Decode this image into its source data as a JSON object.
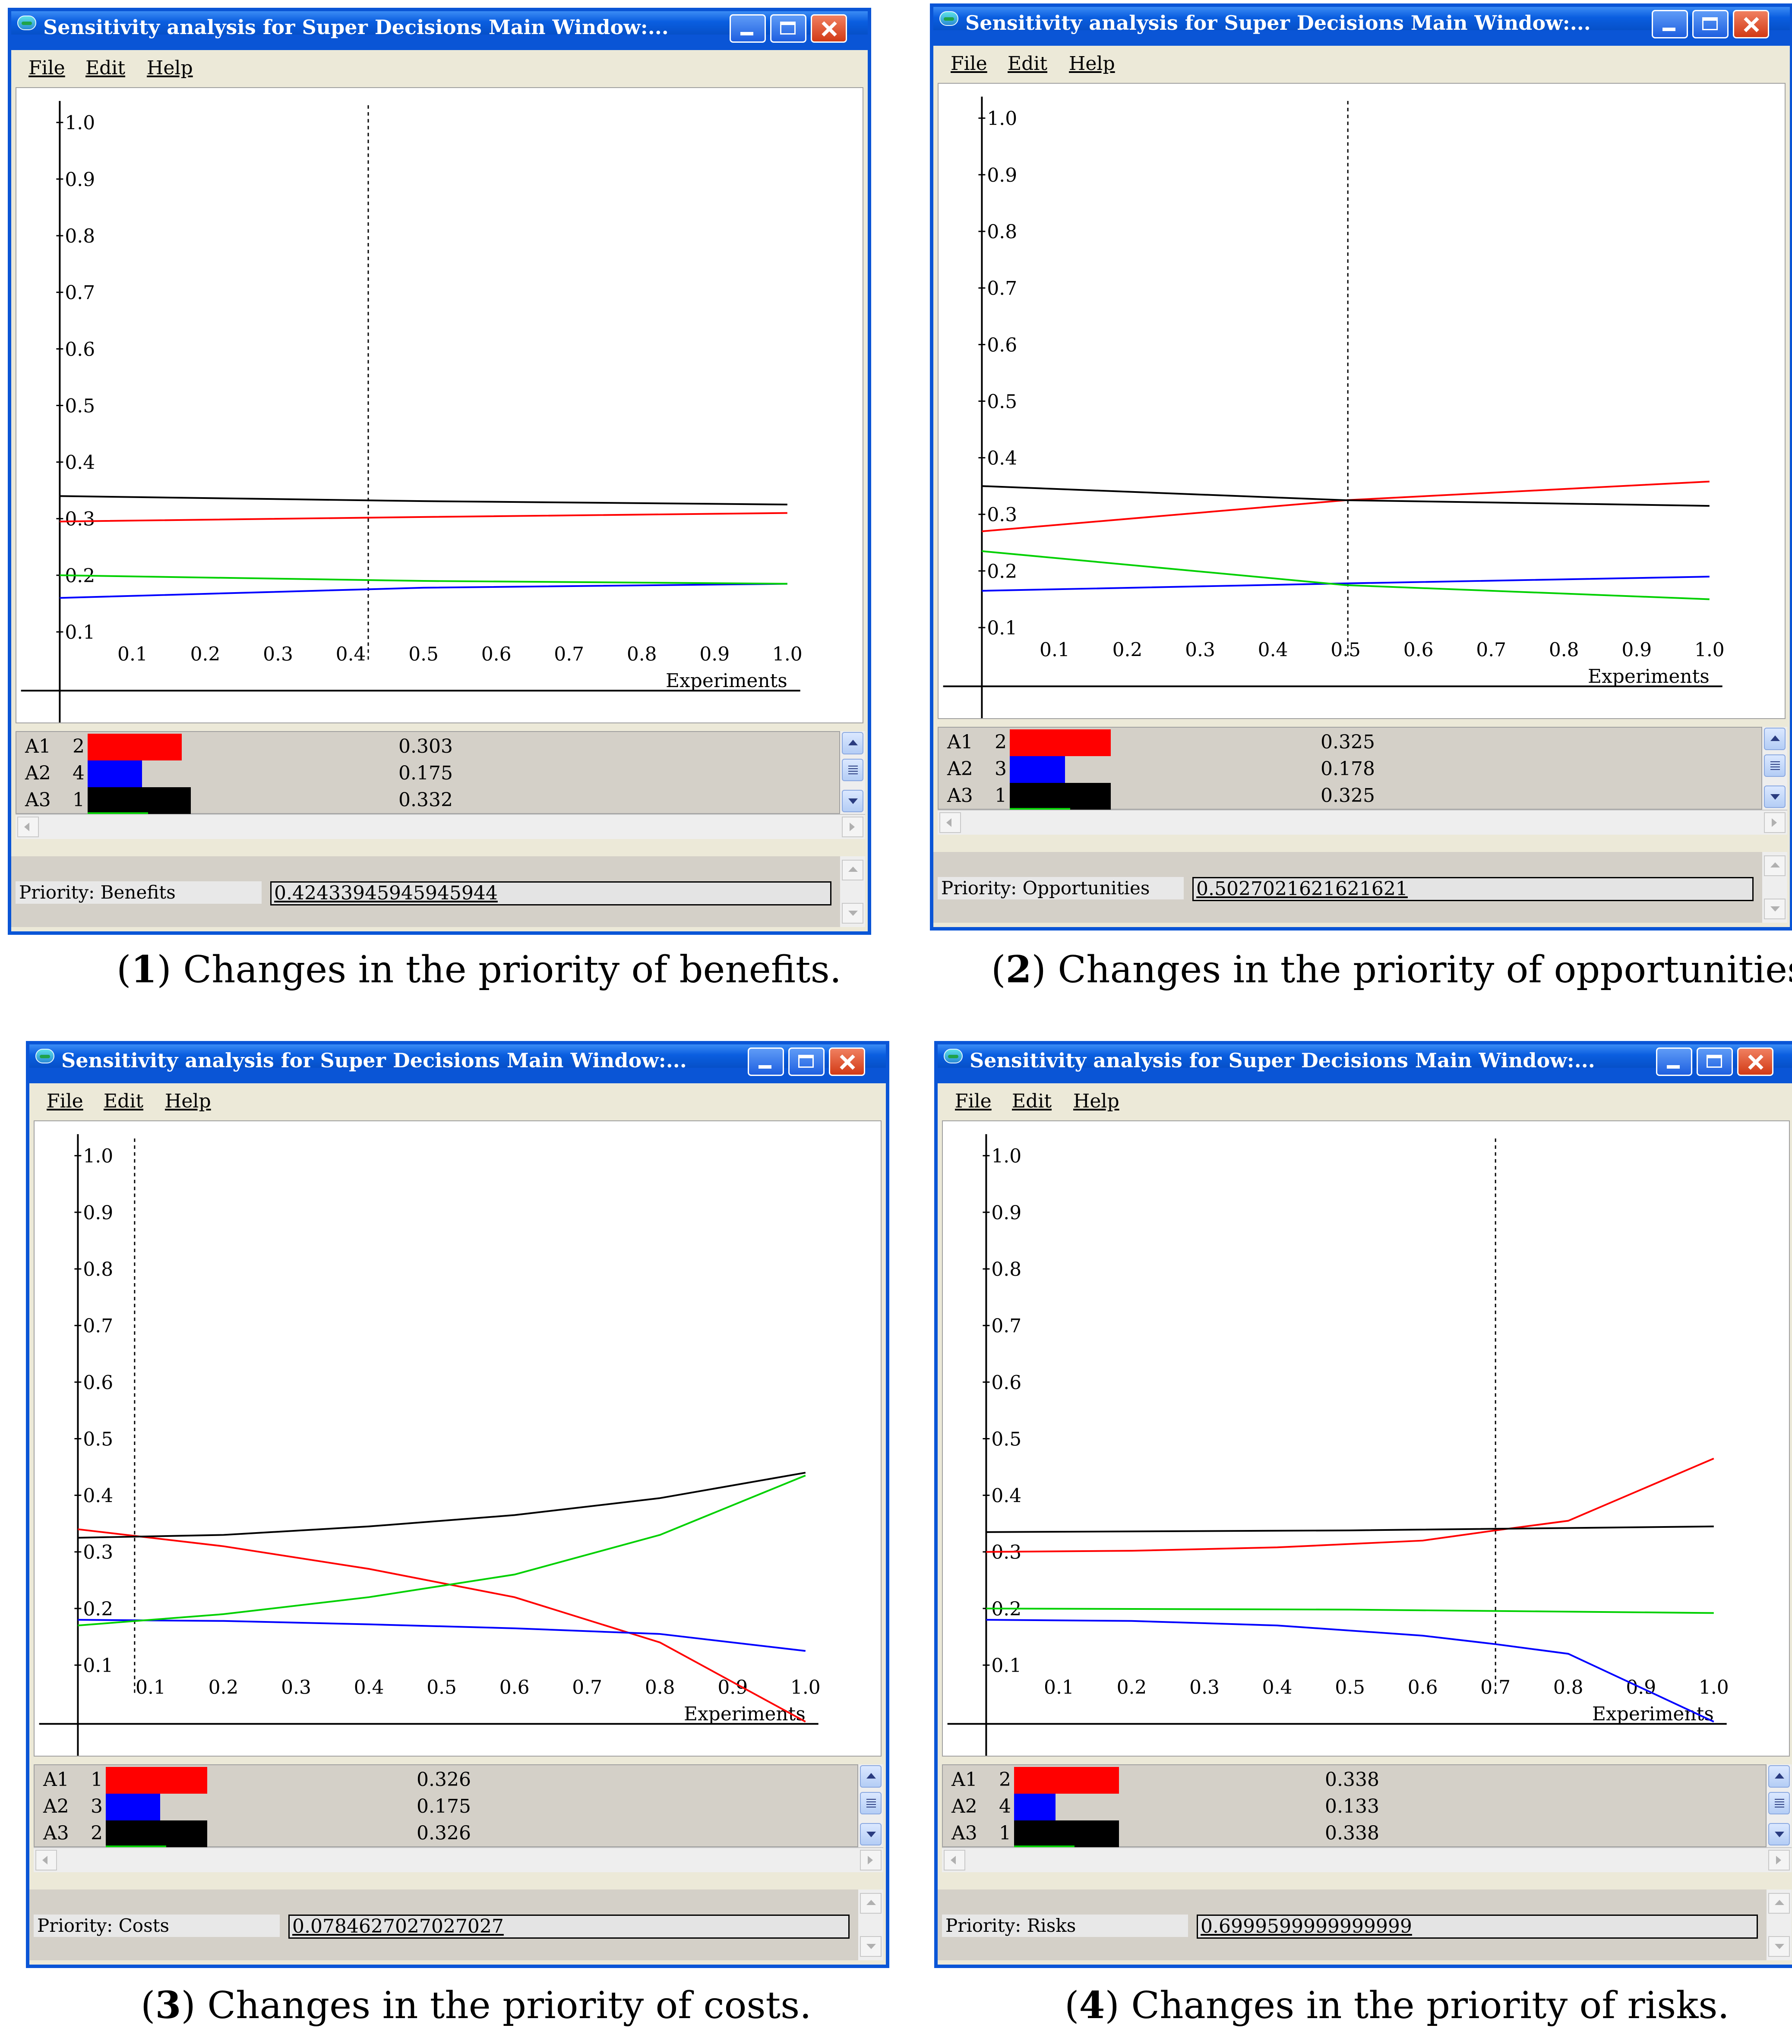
{
  "panels": [
    {
      "window_title": "Sensitivity analysis for Super Decisions Main Window:...",
      "menu": [
        "File",
        "Edit",
        "Help"
      ],
      "caption_num": "1",
      "caption_text": "Changes in the priority of benefits.",
      "priority_label": "Priority: Benefits",
      "priority_value": "0.42433945945945944",
      "legend": [
        {
          "name": "A1",
          "rank": "2",
          "value": "0.303",
          "color": "#ff0000"
        },
        {
          "name": "A2",
          "rank": "4",
          "value": "0.175",
          "color": "#0000ff"
        },
        {
          "name": "A3",
          "rank": "1",
          "value": "0.332",
          "color": "#000000"
        }
      ],
      "chart_data": {
        "type": "line",
        "xlabel": "Experiments",
        "xlim": [
          0,
          1.0
        ],
        "ylim": [
          0,
          1.0
        ],
        "x_ticks": [
          "0.1",
          "0.2",
          "0.3",
          "0.4",
          "0.5",
          "0.6",
          "0.7",
          "0.8",
          "0.9",
          "1.0"
        ],
        "y_ticks": [
          "0.1",
          "0.2",
          "0.3",
          "0.4",
          "0.5",
          "0.6",
          "0.7",
          "0.8",
          "0.9",
          "1.0"
        ],
        "marker_x": 0.424,
        "series": [
          {
            "name": "A1",
            "color": "#ff0000",
            "x": [
              0.0,
              0.5,
              1.0
            ],
            "values": [
              0.295,
              0.303,
              0.31
            ]
          },
          {
            "name": "A2",
            "color": "#0000ff",
            "x": [
              0.0,
              0.5,
              1.0
            ],
            "values": [
              0.16,
              0.178,
              0.185
            ]
          },
          {
            "name": "A3",
            "color": "#000000",
            "x": [
              0.0,
              0.5,
              1.0
            ],
            "values": [
              0.34,
              0.331,
              0.325
            ]
          },
          {
            "name": "",
            "color": "#00d000",
            "x": [
              0.0,
              0.5,
              1.0
            ],
            "values": [
              0.2,
              0.19,
              0.185
            ]
          }
        ]
      }
    },
    {
      "window_title": "Sensitivity analysis for Super Decisions Main Window:...",
      "menu": [
        "File",
        "Edit",
        "Help"
      ],
      "caption_num": "2",
      "caption_text": "Changes in the priority of opportunities.",
      "priority_label": "Priority: Opportunities",
      "priority_value": "0.5027021621621621",
      "legend": [
        {
          "name": "A1",
          "rank": "2",
          "value": "0.325",
          "color": "#ff0000"
        },
        {
          "name": "A2",
          "rank": "3",
          "value": "0.178",
          "color": "#0000ff"
        },
        {
          "name": "A3",
          "rank": "1",
          "value": "0.325",
          "color": "#000000"
        }
      ],
      "chart_data": {
        "type": "line",
        "xlabel": "Experiments",
        "xlim": [
          0,
          1.0
        ],
        "ylim": [
          0,
          1.0
        ],
        "x_ticks": [
          "0.1",
          "0.2",
          "0.3",
          "0.4",
          "0.5",
          "0.6",
          "0.7",
          "0.8",
          "0.9",
          "1.0"
        ],
        "y_ticks": [
          "0.1",
          "0.2",
          "0.3",
          "0.4",
          "0.5",
          "0.6",
          "0.7",
          "0.8",
          "0.9",
          "1.0"
        ],
        "marker_x": 0.503,
        "series": [
          {
            "name": "A1",
            "color": "#ff0000",
            "x": [
              0.0,
              0.5,
              1.0
            ],
            "values": [
              0.27,
              0.325,
              0.358
            ]
          },
          {
            "name": "A2",
            "color": "#0000ff",
            "x": [
              0.0,
              0.5,
              1.0
            ],
            "values": [
              0.165,
              0.178,
              0.19
            ]
          },
          {
            "name": "A3",
            "color": "#000000",
            "x": [
              0.0,
              0.5,
              1.0
            ],
            "values": [
              0.35,
              0.325,
              0.315
            ]
          },
          {
            "name": "",
            "color": "#00d000",
            "x": [
              0.0,
              0.5,
              1.0
            ],
            "values": [
              0.235,
              0.175,
              0.15
            ]
          }
        ]
      }
    },
    {
      "window_title": "Sensitivity analysis for Super Decisions Main Window:...",
      "menu": [
        "File",
        "Edit",
        "Help"
      ],
      "caption_num": "3",
      "caption_text": "Changes in the priority of costs.",
      "priority_label": "Priority: Costs",
      "priority_value": "0.0784627027027027",
      "legend": [
        {
          "name": "A1",
          "rank": "1",
          "value": "0.326",
          "color": "#ff0000"
        },
        {
          "name": "A2",
          "rank": "3",
          "value": "0.175",
          "color": "#0000ff"
        },
        {
          "name": "A3",
          "rank": "2",
          "value": "0.326",
          "color": "#000000"
        }
      ],
      "chart_data": {
        "type": "line",
        "xlabel": "Experiments",
        "xlim": [
          0,
          1.0
        ],
        "ylim": [
          0,
          1.0
        ],
        "x_ticks": [
          "0.1",
          "0.2",
          "0.3",
          "0.4",
          "0.5",
          "0.6",
          "0.7",
          "0.8",
          "0.9",
          "1.0"
        ],
        "y_ticks": [
          "0.1",
          "0.2",
          "0.3",
          "0.4",
          "0.5",
          "0.6",
          "0.7",
          "0.8",
          "0.9",
          "1.0"
        ],
        "marker_x": 0.078,
        "series": [
          {
            "name": "A1",
            "color": "#ff0000",
            "x": [
              0.0,
              0.1,
              0.2,
              0.4,
              0.6,
              0.8,
              1.0
            ],
            "values": [
              0.34,
              0.325,
              0.31,
              0.27,
              0.22,
              0.14,
              0.0
            ]
          },
          {
            "name": "A2",
            "color": "#0000ff",
            "x": [
              0.0,
              0.2,
              0.4,
              0.6,
              0.8,
              1.0
            ],
            "values": [
              0.18,
              0.178,
              0.172,
              0.165,
              0.155,
              0.125
            ]
          },
          {
            "name": "A3",
            "color": "#000000",
            "x": [
              0.0,
              0.2,
              0.4,
              0.6,
              0.8,
              1.0
            ],
            "values": [
              0.325,
              0.33,
              0.345,
              0.365,
              0.395,
              0.44
            ]
          },
          {
            "name": "",
            "color": "#00d000",
            "x": [
              0.0,
              0.2,
              0.4,
              0.6,
              0.8,
              1.0
            ],
            "values": [
              0.17,
              0.19,
              0.22,
              0.26,
              0.33,
              0.435
            ]
          }
        ]
      }
    },
    {
      "window_title": "Sensitivity analysis for Super Decisions Main Window:...",
      "menu": [
        "File",
        "Edit",
        "Help"
      ],
      "caption_num": "4",
      "caption_text": "Changes in the priority of risks.",
      "priority_label": "Priority: Risks",
      "priority_value": "0.6999599999999999",
      "legend": [
        {
          "name": "A1",
          "rank": "2",
          "value": "0.338",
          "color": "#ff0000"
        },
        {
          "name": "A2",
          "rank": "4",
          "value": "0.133",
          "color": "#0000ff"
        },
        {
          "name": "A3",
          "rank": "1",
          "value": "0.338",
          "color": "#000000"
        }
      ],
      "chart_data": {
        "type": "line",
        "xlabel": "Experiments",
        "xlim": [
          0,
          1.0
        ],
        "ylim": [
          0,
          1.0
        ],
        "x_ticks": [
          "0.1",
          "0.2",
          "0.3",
          "0.4",
          "0.5",
          "0.6",
          "0.7",
          "0.8",
          "0.9",
          "1.0"
        ],
        "y_ticks": [
          "0.1",
          "0.2",
          "0.3",
          "0.4",
          "0.5",
          "0.6",
          "0.7",
          "0.8",
          "0.9",
          "1.0"
        ],
        "marker_x": 0.7,
        "series": [
          {
            "name": "A1",
            "color": "#ff0000",
            "x": [
              0.0,
              0.2,
              0.4,
              0.6,
              0.7,
              0.8,
              1.0
            ],
            "values": [
              0.3,
              0.302,
              0.308,
              0.32,
              0.338,
              0.355,
              0.465
            ]
          },
          {
            "name": "A2",
            "color": "#0000ff",
            "x": [
              0.0,
              0.2,
              0.4,
              0.6,
              0.7,
              0.8,
              1.0
            ],
            "values": [
              0.18,
              0.178,
              0.17,
              0.152,
              0.137,
              0.12,
              0.0
            ]
          },
          {
            "name": "A3",
            "color": "#000000",
            "x": [
              0.0,
              0.5,
              1.0
            ],
            "values": [
              0.335,
              0.338,
              0.345
            ]
          },
          {
            "name": "",
            "color": "#00d000",
            "x": [
              0.0,
              0.5,
              1.0
            ],
            "values": [
              0.2,
              0.198,
              0.192
            ]
          }
        ]
      }
    }
  ]
}
